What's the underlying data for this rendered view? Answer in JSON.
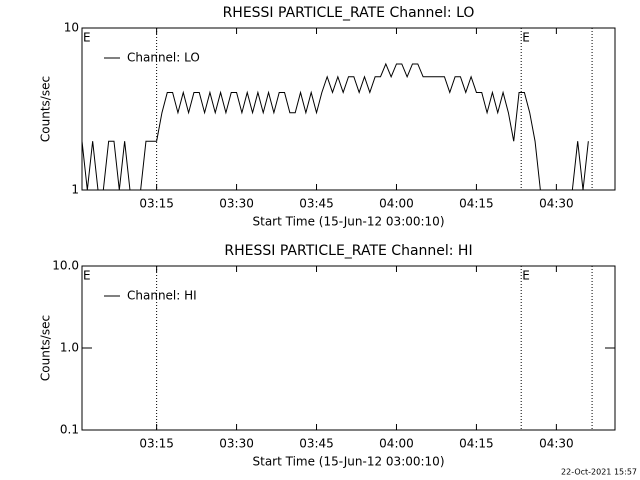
{
  "chart_data": [
    {
      "type": "line",
      "title": "RHESSI PARTICLE_RATE Channel: LO",
      "y_label": "Counts/sec",
      "x_label": "Start Time (15-Jun-12 03:00:10)",
      "log_y": true,
      "xlim": [
        1,
        101
      ],
      "ylim": [
        1,
        10
      ],
      "xticks": [
        {
          "value": 15,
          "label": "03:15"
        },
        {
          "value": 30,
          "label": "03:30"
        },
        {
          "value": 45,
          "label": "03:45"
        },
        {
          "value": 60,
          "label": "04:00"
        },
        {
          "value": 75,
          "label": "04:15"
        },
        {
          "value": 90,
          "label": "04:30"
        }
      ],
      "yticks": [
        1,
        10
      ],
      "vlines": [
        15,
        83.4,
        96.7
      ],
      "annotations": [
        {
          "x": 1,
          "label": "E"
        },
        {
          "x": 83.4,
          "label": "E"
        }
      ],
      "legend": "top-left",
      "x": [
        1,
        2,
        3,
        4,
        5,
        6,
        7,
        8,
        9,
        10,
        11,
        12,
        13,
        14,
        15,
        16,
        17,
        18,
        19,
        20,
        21,
        22,
        23,
        24,
        25,
        26,
        27,
        28,
        29,
        30,
        31,
        32,
        33,
        34,
        35,
        36,
        37,
        38,
        39,
        40,
        41,
        42,
        43,
        44,
        45,
        46,
        47,
        48,
        49,
        50,
        51,
        52,
        53,
        54,
        55,
        56,
        57,
        58,
        59,
        60,
        61,
        62,
        63,
        64,
        65,
        66,
        67,
        68,
        69,
        70,
        71,
        72,
        73,
        74,
        75,
        76,
        77,
        78,
        79,
        80,
        81,
        82,
        83,
        84,
        85,
        86,
        87,
        88,
        89,
        90,
        91,
        92,
        93,
        94,
        95,
        96
      ],
      "series": [
        {
          "name": "Channel: LO",
          "color": "#000000",
          "values": [
            2,
            1,
            2,
            1,
            1,
            2,
            2,
            1,
            2,
            1,
            1,
            1,
            2,
            2,
            2,
            3,
            4,
            4,
            3,
            4,
            3,
            4,
            4,
            3,
            4,
            3,
            4,
            3,
            4,
            4,
            3,
            4,
            3,
            4,
            3,
            4,
            3,
            4,
            4,
            3,
            3,
            4,
            3,
            4,
            3,
            4,
            5,
            4,
            5,
            4,
            5,
            5,
            4,
            5,
            4,
            5,
            5,
            6,
            5,
            6,
            6,
            5,
            6,
            6,
            5,
            5,
            5,
            5,
            5,
            4,
            5,
            5,
            4,
            5,
            4,
            4,
            3,
            4,
            3,
            4,
            3,
            2,
            4,
            4,
            3,
            2,
            1,
            1,
            1,
            1,
            1,
            1,
            1,
            2,
            1,
            2
          ]
        }
      ]
    },
    {
      "type": "line",
      "title": "RHESSI PARTICLE_RATE Channel: HI",
      "y_label": "Counts/sec",
      "x_label": "Start Time (15-Jun-12 03:00:10)",
      "log_y": true,
      "xlim": [
        1,
        101
      ],
      "ylim": [
        0.1,
        10
      ],
      "xticks": [
        {
          "value": 15,
          "label": "03:15"
        },
        {
          "value": 30,
          "label": "03:30"
        },
        {
          "value": 45,
          "label": "03:45"
        },
        {
          "value": 60,
          "label": "04:00"
        },
        {
          "value": 75,
          "label": "04:15"
        },
        {
          "value": 90,
          "label": "04:30"
        }
      ],
      "yticks": [
        0.1,
        {
          "value": 1,
          "label": "1.0"
        },
        {
          "value": 10,
          "label": "10.0"
        }
      ],
      "vlines": [
        15,
        83.4,
        96.7
      ],
      "annotations": [
        {
          "x": 1,
          "label": "E"
        },
        {
          "x": 83.4,
          "label": "E"
        }
      ],
      "legend": "top-left",
      "x": [],
      "series": [
        {
          "name": "Channel: HI",
          "color": "#000000",
          "values": []
        }
      ]
    }
  ],
  "footer": "22-Oct-2021 15:57"
}
